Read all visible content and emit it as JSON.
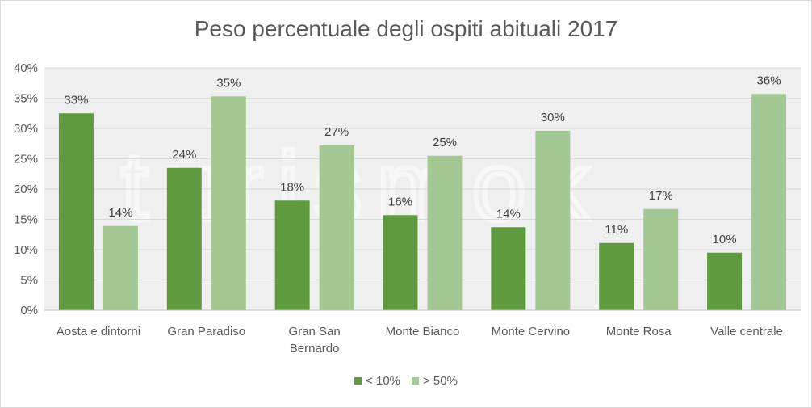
{
  "chart_data": {
    "type": "bar",
    "title": "Peso percentuale degli ospiti abituali 2017",
    "categories": [
      "Aosta e dintorni",
      "Gran Paradiso",
      "Gran San Bernardo",
      "Monte Bianco",
      "Monte Cervino",
      "Monte Rosa",
      "Valle centrale"
    ],
    "category_lines": [
      [
        "Aosta e dintorni"
      ],
      [
        "Gran Paradiso"
      ],
      [
        "Gran San",
        "Bernardo"
      ],
      [
        "Monte Bianco"
      ],
      [
        "Monte Cervino"
      ],
      [
        "Monte Rosa"
      ],
      [
        "Valle centrale"
      ]
    ],
    "series": [
      {
        "name": "< 10%",
        "color": "#5f9a3f",
        "values": [
          32.5,
          23.5,
          18.1,
          15.7,
          13.7,
          11.1,
          9.5
        ],
        "labels": [
          "33%",
          "24%",
          "18%",
          "16%",
          "14%",
          "11%",
          "10%"
        ]
      },
      {
        "name": "> 50%",
        "color": "#a3c894",
        "values": [
          13.9,
          35.3,
          27.2,
          25.5,
          29.6,
          16.7,
          35.7
        ],
        "labels": [
          "14%",
          "35%",
          "27%",
          "25%",
          "30%",
          "17%",
          "36%"
        ]
      }
    ],
    "ylim": [
      0,
      40
    ],
    "yticks": [
      0,
      5,
      10,
      15,
      20,
      25,
      30,
      35,
      40
    ],
    "ytick_labels": [
      "0%",
      "5%",
      "10%",
      "15%",
      "20%",
      "25%",
      "30%",
      "35%",
      "40%"
    ],
    "grid": true,
    "plot_background": "#efefef",
    "legend_position": "bottom",
    "watermark": "turismok"
  }
}
